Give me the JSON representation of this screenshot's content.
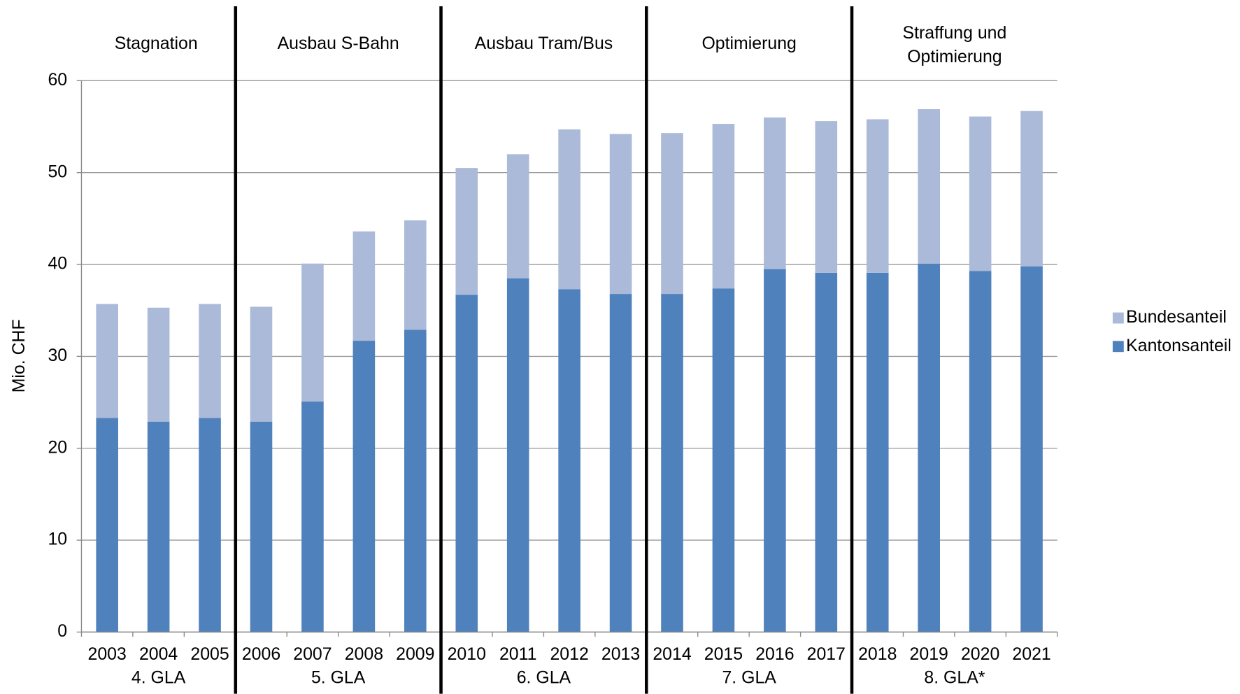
{
  "chart_data": {
    "type": "stacked_bar",
    "y_label": "Mio. CHF",
    "ylim": [
      0,
      60
    ],
    "yticks": [
      0,
      10,
      20,
      30,
      40,
      50,
      60
    ],
    "grid": true,
    "legend_position": "right",
    "periods": [
      {
        "title": [
          "Stagnation"
        ],
        "program": "4. GLA",
        "categories": [
          "2003",
          "2004",
          "2005"
        ]
      },
      {
        "title": [
          "Ausbau S-Bahn"
        ],
        "program": "5. GLA",
        "categories": [
          "2006",
          "2007",
          "2008",
          "2009"
        ]
      },
      {
        "title": [
          "Ausbau Tram/Bus"
        ],
        "program": "6. GLA",
        "categories": [
          "2010",
          "2011",
          "2012",
          "2013"
        ]
      },
      {
        "title": [
          "Optimierung"
        ],
        "program": "7. GLA",
        "categories": [
          "2014",
          "2015",
          "2016",
          "2017"
        ]
      },
      {
        "title": [
          "Straffung und",
          "Optimierung"
        ],
        "program": "8. GLA*",
        "categories": [
          "2018",
          "2019",
          "2020",
          "2021"
        ]
      }
    ],
    "series": [
      {
        "name": "Kantonsanteil",
        "color": "#4f81bd",
        "values": [
          23.3,
          22.9,
          23.3,
          22.9,
          25.1,
          31.7,
          32.9,
          36.7,
          38.5,
          37.3,
          36.8,
          36.8,
          37.4,
          39.5,
          39.1,
          39.1,
          40.1,
          39.3,
          39.8
        ]
      },
      {
        "name": "Bundesanteil",
        "color": "#abbad8",
        "values": [
          12.4,
          12.4,
          12.4,
          12.5,
          15.0,
          11.9,
          11.9,
          13.8,
          13.5,
          17.4,
          17.4,
          17.5,
          17.9,
          16.5,
          16.5,
          16.7,
          16.8,
          16.8,
          16.9
        ]
      }
    ]
  }
}
